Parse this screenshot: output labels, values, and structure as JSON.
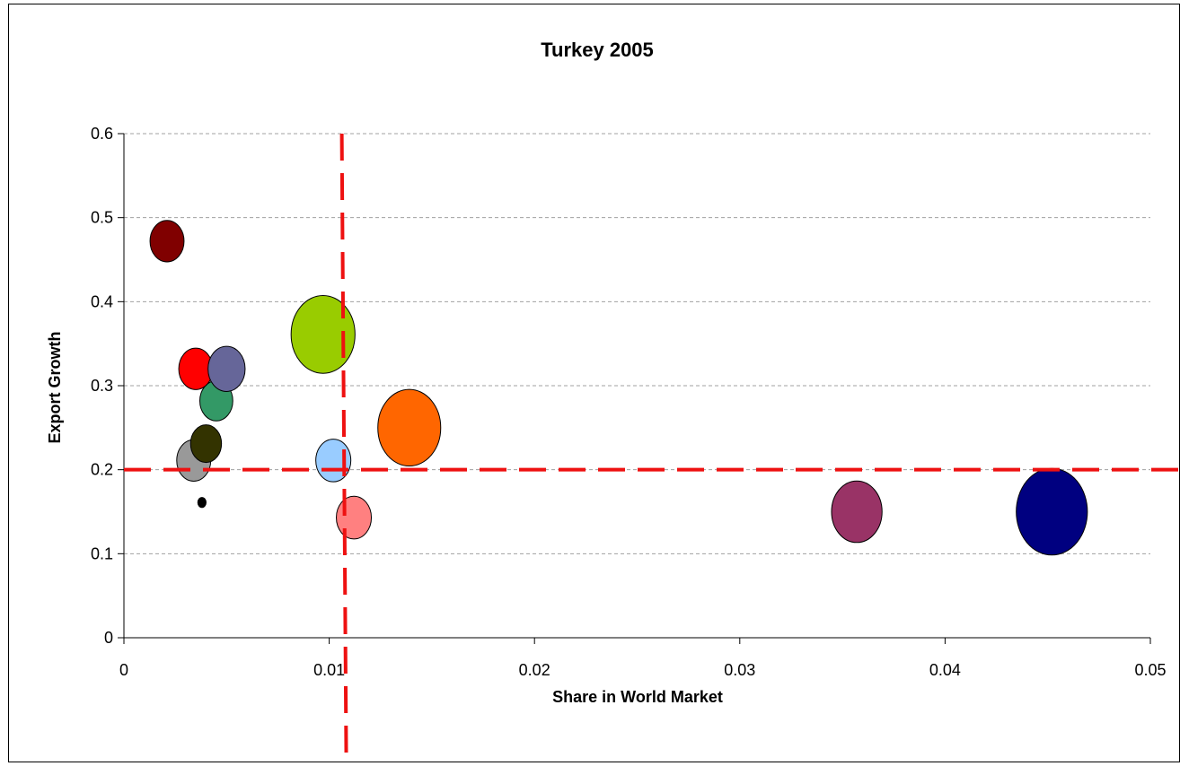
{
  "chart_data": {
    "type": "bubble",
    "title": "Turkey 2005",
    "xlabel": "Share in World Market",
    "ylabel": "Export Growth",
    "xlim": [
      0,
      0.05
    ],
    "ylim": [
      0,
      0.6
    ],
    "x_ticks": [
      "0",
      "0.01",
      "0.02",
      "0.03",
      "0.04",
      "0.05"
    ],
    "y_ticks": [
      "0",
      "0.1",
      "0.2",
      "0.3",
      "0.4",
      "0.5",
      "0.6"
    ],
    "grid": "horizontal dashed",
    "reference_lines": [
      {
        "axis": "x",
        "value": 0.0107,
        "color": "#ee1111",
        "style": "dashed"
      },
      {
        "axis": "y",
        "value": 0.2,
        "color": "#ee1111",
        "style": "dashed"
      }
    ],
    "points": [
      {
        "x": 0.0045,
        "y": 0.282,
        "size": 0.32,
        "color": "#339966"
      },
      {
        "x": 0.0034,
        "y": 0.211,
        "size": 0.33,
        "color": "#999999"
      },
      {
        "x": 0.0038,
        "y": 0.161,
        "size": 0.08,
        "color": "#000000"
      },
      {
        "x": 0.004,
        "y": 0.231,
        "size": 0.3,
        "color": "#333300"
      },
      {
        "x": 0.0021,
        "y": 0.472,
        "size": 0.33,
        "color": "#800000"
      },
      {
        "x": 0.0035,
        "y": 0.32,
        "size": 0.33,
        "color": "#ff0000"
      },
      {
        "x": 0.005,
        "y": 0.32,
        "size": 0.36,
        "color": "#666699"
      },
      {
        "x": 0.0097,
        "y": 0.361,
        "size": 0.62,
        "color": "#99cc00"
      },
      {
        "x": 0.0102,
        "y": 0.211,
        "size": 0.34,
        "color": "#99ccff"
      },
      {
        "x": 0.0112,
        "y": 0.143,
        "size": 0.34,
        "color": "#ff8080"
      },
      {
        "x": 0.0139,
        "y": 0.25,
        "size": 0.61,
        "color": "#ff6600"
      },
      {
        "x": 0.0357,
        "y": 0.15,
        "size": 0.49,
        "color": "#993366"
      },
      {
        "x": 0.0452,
        "y": 0.15,
        "size": 0.69,
        "color": "#000080"
      }
    ]
  }
}
